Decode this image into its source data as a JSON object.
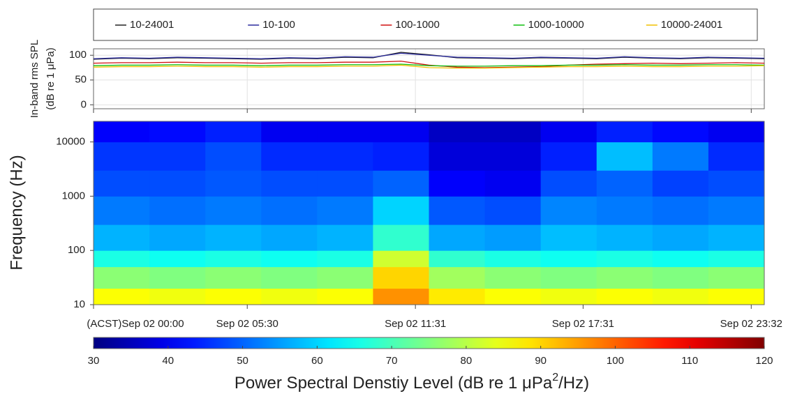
{
  "chart_data": [
    {
      "type": "line",
      "ylabel": [
        "In-band rms SPL",
        "(dB re 1 μPa)"
      ],
      "x": [
        0,
        1,
        2,
        3,
        4,
        5,
        6,
        7,
        8,
        9,
        10,
        11,
        12,
        13,
        14,
        15,
        16,
        17,
        18,
        19,
        20,
        21,
        22,
        23,
        24
      ],
      "xlim": [
        0,
        24
      ],
      "ylim": [
        -8,
        113
      ],
      "yticks": [
        0,
        50,
        100
      ],
      "grid": true,
      "legend": "top",
      "series": [
        {
          "name": "10-24001",
          "color": "#222222",
          "values": [
            92,
            94,
            93,
            95,
            94,
            93,
            92,
            94,
            93,
            96,
            95,
            106,
            101,
            95,
            94,
            93,
            95,
            94,
            93,
            96,
            94,
            93,
            95,
            94,
            93
          ]
        },
        {
          "name": "10-100",
          "color": "#2b2b9e",
          "values": [
            93,
            95,
            94,
            96,
            95,
            94,
            93,
            95,
            94,
            97,
            96,
            104,
            100,
            96,
            95,
            94,
            96,
            95,
            94,
            97,
            95,
            94,
            96,
            95,
            94
          ]
        },
        {
          "name": "100-1000",
          "color": "#d01010",
          "values": [
            84,
            85,
            85,
            86,
            85,
            85,
            84,
            85,
            85,
            86,
            86,
            88,
            80,
            76,
            75,
            76,
            77,
            80,
            82,
            83,
            84,
            83,
            84,
            85,
            84
          ]
        },
        {
          "name": "1000-10000",
          "color": "#10c010",
          "values": [
            79,
            80,
            80,
            81,
            80,
            80,
            79,
            80,
            80,
            81,
            81,
            82,
            79,
            78,
            78,
            79,
            79,
            80,
            80,
            81,
            80,
            80,
            81,
            81,
            80
          ]
        },
        {
          "name": "10000-24001",
          "color": "#f0c000",
          "values": [
            76,
            77,
            77,
            78,
            77,
            77,
            76,
            77,
            77,
            78,
            78,
            80,
            75,
            74,
            74,
            75,
            76,
            77,
            77,
            78,
            77,
            77,
            78,
            78,
            79
          ]
        }
      ]
    },
    {
      "type": "heatmap",
      "ylabel": "Frequency (Hz)",
      "xlim": [
        0,
        24
      ],
      "xticks": [
        {
          "value": 0,
          "label": "(ACST)Sep 02 00:00"
        },
        {
          "value": 5.5,
          "label": "Sep 02 05:30"
        },
        {
          "value": 11.517,
          "label": "Sep 02 11:31"
        },
        {
          "value": 17.517,
          "label": "Sep 02 17:31"
        },
        {
          "value": 23.533,
          "label": "Sep 02 23:32"
        }
      ],
      "ylim": [
        10,
        24000
      ],
      "log_y": true,
      "yticks": [
        10,
        100,
        1000,
        10000
      ],
      "x_edges": [
        0,
        2,
        4,
        6,
        8,
        10,
        12,
        14,
        16,
        18,
        20,
        22,
        24
      ],
      "y_edges": [
        10,
        20,
        50,
        100,
        300,
        1000,
        3000,
        10000,
        24000
      ],
      "z": [
        [
          86,
          85,
          86,
          85,
          86,
          96,
          88,
          86,
          85,
          86,
          85,
          86
        ],
        [
          76,
          75,
          76,
          75,
          76,
          90,
          78,
          76,
          75,
          76,
          75,
          76
        ],
        [
          66,
          65,
          66,
          65,
          66,
          82,
          68,
          66,
          65,
          66,
          65,
          66
        ],
        [
          57,
          56,
          57,
          56,
          57,
          68,
          56,
          55,
          58,
          57,
          56,
          57
        ],
        [
          52,
          51,
          52,
          51,
          52,
          60,
          49,
          48,
          53,
          52,
          51,
          52
        ],
        [
          48,
          48,
          49,
          48,
          48,
          50,
          41,
          40,
          48,
          50,
          47,
          48
        ],
        [
          46,
          46,
          48,
          45,
          45,
          44,
          38,
          38,
          44,
          58,
          52,
          45
        ],
        [
          41,
          42,
          44,
          40,
          40,
          40,
          36,
          36,
          40,
          44,
          42,
          40
        ]
      ],
      "colormap": "jet",
      "clim": [
        30,
        120
      ],
      "cticks": [
        30,
        40,
        50,
        60,
        70,
        80,
        90,
        100,
        110,
        120
      ],
      "colorbar_label": [
        "Power Spectral Denstiy Level (dB re 1 μPa",
        "2",
        "/Hz)"
      ]
    }
  ]
}
